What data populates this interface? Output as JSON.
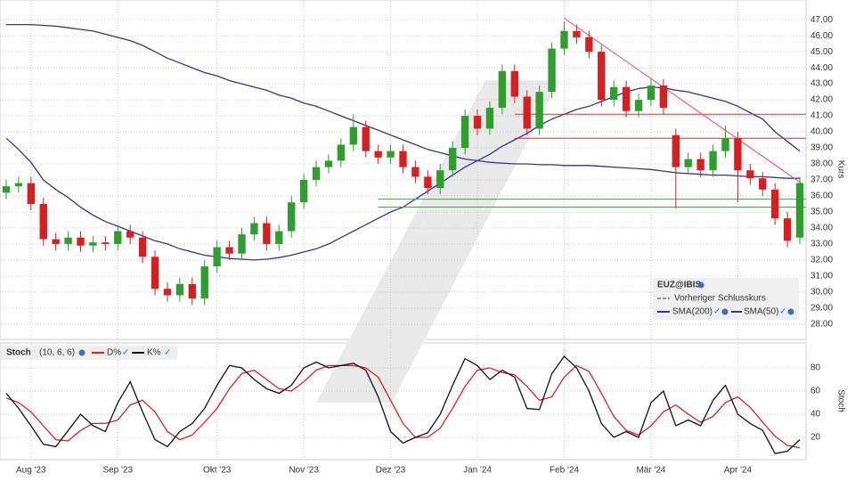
{
  "chart_data": [
    {
      "type": "candlestick",
      "symbol": "EUZ@IBIS",
      "previous_close_label": "Vorheriger Schlusskurs",
      "y_label": "Kurs",
      "up_color": "#2e9e2e",
      "down_color": "#d42020",
      "open": [
        36.2,
        36.6,
        36.8,
        35.5,
        33.3,
        33.0,
        33.4,
        32.9,
        33.1,
        33.0,
        33.8,
        33.4,
        32.2,
        30.2,
        29.8,
        30.5,
        29.6,
        31.6,
        32.8,
        32.4,
        33.6,
        34.3,
        33.0,
        33.8,
        35.6,
        37.0,
        37.8,
        38.2,
        39.2,
        40.3,
        38.8,
        38.4,
        38.8,
        37.8,
        37.2,
        36.5,
        37.6,
        39.0,
        41.0,
        40.2,
        41.5,
        43.8,
        42.2,
        40.2,
        42.5,
        45.2,
        46.3,
        45.9,
        45.0,
        42.0,
        42.8,
        41.3,
        42.0,
        42.9,
        39.8,
        37.8,
        38.3,
        37.6,
        38.8,
        39.6,
        37.6,
        37.1,
        36.4,
        34.6,
        33.4
      ],
      "high": [
        37.0,
        37.2,
        37.2,
        35.9,
        33.7,
        33.8,
        33.8,
        33.5,
        33.5,
        34.2,
        34.2,
        33.8,
        32.6,
        30.6,
        30.9,
        30.9,
        32.0,
        33.2,
        33.2,
        34.0,
        34.7,
        34.7,
        34.2,
        36.0,
        37.4,
        38.2,
        38.6,
        39.6,
        41.1,
        40.7,
        39.2,
        39.2,
        39.2,
        38.2,
        37.6,
        38.0,
        39.4,
        41.4,
        41.4,
        41.9,
        44.2,
        44.2,
        42.6,
        42.9,
        45.6,
        46.9,
        46.7,
        46.3,
        45.4,
        43.2,
        43.2,
        42.4,
        43.3,
        43.3,
        40.2,
        38.7,
        38.7,
        39.2,
        40.4,
        40.0,
        38.0,
        37.5,
        36.8,
        35.0,
        37.2
      ],
      "low": [
        35.8,
        36.2,
        35.1,
        32.9,
        32.6,
        32.6,
        32.5,
        32.5,
        32.6,
        32.6,
        33.0,
        31.8,
        29.8,
        29.4,
        29.4,
        29.2,
        29.2,
        31.2,
        32.0,
        32.0,
        33.2,
        32.6,
        32.6,
        33.4,
        35.2,
        36.6,
        37.4,
        37.8,
        38.8,
        38.4,
        38.0,
        38.0,
        37.4,
        36.8,
        36.1,
        36.1,
        37.2,
        38.6,
        39.8,
        39.8,
        41.1,
        41.8,
        39.8,
        39.8,
        42.1,
        44.8,
        45.5,
        44.6,
        41.6,
        41.6,
        40.9,
        40.9,
        41.6,
        41.1,
        35.2,
        37.4,
        37.2,
        37.2,
        38.4,
        35.6,
        36.7,
        36.0,
        34.2,
        32.8,
        33.0
      ],
      "close": [
        36.6,
        36.8,
        35.5,
        33.3,
        33.0,
        33.4,
        32.9,
        33.1,
        33.0,
        33.8,
        33.4,
        32.2,
        30.2,
        29.8,
        30.5,
        29.6,
        31.6,
        32.8,
        32.4,
        33.6,
        34.3,
        33.0,
        33.8,
        35.6,
        37.0,
        37.8,
        38.2,
        39.2,
        40.3,
        38.8,
        38.4,
        38.8,
        37.8,
        37.2,
        36.5,
        37.6,
        39.0,
        41.0,
        40.2,
        41.5,
        43.8,
        42.2,
        40.2,
        42.5,
        45.2,
        46.3,
        45.9,
        45.0,
        42.0,
        42.8,
        41.3,
        42.0,
        42.9,
        41.5,
        37.8,
        38.3,
        37.6,
        38.8,
        39.6,
        37.6,
        37.1,
        36.4,
        34.6,
        33.2,
        36.8
      ],
      "series": [
        {
          "name": "SMA(200)",
          "color": "#34348c",
          "values": [
            46.7,
            46.7,
            46.7,
            46.65,
            46.6,
            46.5,
            46.4,
            46.3,
            46.1,
            45.9,
            45.7,
            45.4,
            45.0,
            44.6,
            44.3,
            44.0,
            43.7,
            43.5,
            43.2,
            43.0,
            42.8,
            42.6,
            42.3,
            42.1,
            41.8,
            41.6,
            41.3,
            41.0,
            40.7,
            40.4,
            40.1,
            39.8,
            39.5,
            39.2,
            38.9,
            38.7,
            38.5,
            38.3,
            38.2,
            38.1,
            38.05,
            38.0,
            38.0,
            37.95,
            37.95,
            37.9,
            37.9,
            37.9,
            37.85,
            37.8,
            37.75,
            37.7,
            37.65,
            37.55,
            37.45,
            37.4,
            37.35,
            37.3,
            37.3,
            37.25,
            37.2,
            37.2,
            37.15,
            37.1,
            37.1
          ]
        },
        {
          "name": "SMA(50)",
          "color": "#34348c",
          "values": [
            39.6,
            38.9,
            38.1,
            37.0,
            36.4,
            35.9,
            35.3,
            34.8,
            34.4,
            34.1,
            33.8,
            33.5,
            33.2,
            33.0,
            32.7,
            32.5,
            32.3,
            32.2,
            32.1,
            32.05,
            32.0,
            32.05,
            32.15,
            32.3,
            32.5,
            32.7,
            33.0,
            33.4,
            33.8,
            34.2,
            34.6,
            35.0,
            35.3,
            35.8,
            36.3,
            36.8,
            37.3,
            37.8,
            38.2,
            38.6,
            39.1,
            39.5,
            39.9,
            40.4,
            40.8,
            41.1,
            41.4,
            41.6,
            41.9,
            42.2,
            42.5,
            42.7,
            42.8,
            42.75,
            42.6,
            42.5,
            42.3,
            42.1,
            41.9,
            41.6,
            41.2,
            40.8,
            40.0,
            39.4,
            38.8
          ]
        }
      ],
      "resistance": [
        41.1,
        39.6
      ],
      "resistance_color": "#e03030",
      "support": [
        35.8,
        35.3
      ],
      "support_color": "#3aa83a",
      "trendline": [
        47.1,
        36.7
      ],
      "trendline_color": "#f06070",
      "ylim": [
        27.1,
        47.9
      ],
      "yticks": [
        {
          "value": 28,
          "label": "28.00"
        },
        {
          "value": 29,
          "label": "29.00"
        },
        {
          "value": 30,
          "label": "30.00"
        },
        {
          "value": 31,
          "label": "31.00"
        },
        {
          "value": 32,
          "label": "32.00"
        },
        {
          "value": 33,
          "label": "33.00"
        },
        {
          "value": 34,
          "label": "34.00"
        },
        {
          "value": 35,
          "label": "35.00"
        },
        {
          "value": 36,
          "label": "36.00"
        },
        {
          "value": 37,
          "label": "37.00"
        },
        {
          "value": 38,
          "label": "38.00"
        },
        {
          "value": 39,
          "label": "39.00"
        },
        {
          "value": 40,
          "label": "40.00"
        },
        {
          "value": 41,
          "label": "41.00"
        },
        {
          "value": 42,
          "label": "42.00"
        },
        {
          "value": 43,
          "label": "43.00"
        },
        {
          "value": 44,
          "label": "44.00"
        },
        {
          "value": 45,
          "label": "45.00"
        },
        {
          "value": 46,
          "label": "46.00"
        },
        {
          "value": 47,
          "label": "47.00"
        }
      ],
      "grid": true
    },
    {
      "type": "line",
      "indicator": "Stoch",
      "params": "(10, 6, 6)",
      "y_label": "Stoch",
      "categories": [
        null,
        null,
        "Aug '23",
        null,
        null,
        null,
        null,
        null,
        null,
        "Sep '23",
        null,
        null,
        null,
        null,
        null,
        null,
        null,
        "Okt '23",
        null,
        null,
        null,
        null,
        null,
        null,
        "Nov '23",
        null,
        null,
        null,
        null,
        null,
        null,
        "Dez '23",
        null,
        null,
        null,
        null,
        null,
        null,
        "Jan '24",
        null,
        null,
        null,
        null,
        null,
        null,
        "Feb '24",
        null,
        null,
        null,
        null,
        null,
        null,
        "Mär '24",
        null,
        null,
        null,
        null,
        null,
        null,
        "Apr '24",
        null,
        null,
        null,
        null,
        null
      ],
      "series": [
        {
          "name": "D%",
          "color": "#e02020",
          "values": [
            54,
            50,
            42,
            30,
            18,
            17,
            26,
            32,
            32,
            35,
            48,
            52,
            42,
            25,
            18,
            22,
            33,
            45,
            62,
            75,
            78,
            70,
            62,
            60,
            68,
            78,
            82,
            82,
            82,
            80,
            72,
            52,
            32,
            20,
            20,
            28,
            45,
            64,
            78,
            80,
            76,
            74,
            64,
            52,
            55,
            72,
            82,
            77,
            58,
            38,
            26,
            22,
            30,
            42,
            48,
            40,
            33,
            38,
            50,
            55,
            46,
            33,
            21,
            13,
            11
          ]
        },
        {
          "name": "K%",
          "color": "#111111",
          "values": [
            58,
            45,
            30,
            14,
            12,
            26,
            40,
            30,
            25,
            50,
            68,
            42,
            18,
            12,
            25,
            32,
            45,
            65,
            82,
            80,
            70,
            62,
            58,
            65,
            80,
            85,
            80,
            82,
            84,
            78,
            55,
            25,
            15,
            20,
            24,
            40,
            65,
            88,
            82,
            70,
            78,
            72,
            45,
            44,
            75,
            90,
            80,
            60,
            32,
            20,
            25,
            20,
            50,
            60,
            30,
            35,
            30,
            52,
            65,
            40,
            32,
            26,
            6,
            8,
            18
          ]
        }
      ],
      "ylim": [
        0,
        100
      ],
      "yticks": [
        20,
        40,
        60,
        80
      ],
      "grid": true
    }
  ]
}
